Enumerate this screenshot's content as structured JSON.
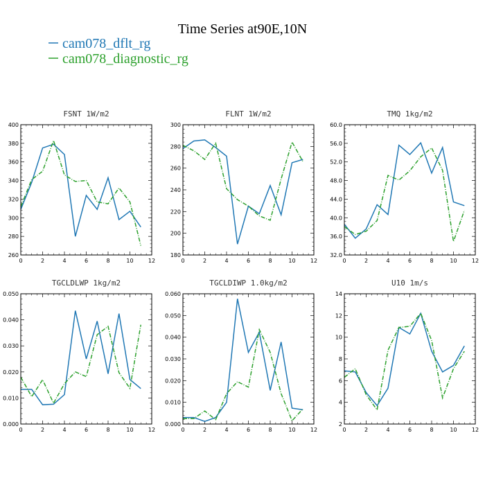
{
  "figure": {
    "title": "Time Series at90E,10N",
    "legend": [
      {
        "name": "cam078_dflt_rg",
        "color": "#1f77b4",
        "style": "solid"
      },
      {
        "name": "cam078_diagnostic_rg",
        "color": "#2ca02c",
        "style": "dashdot"
      }
    ]
  },
  "chart_data": [
    {
      "type": "line",
      "title": "FSNT 1W/m2",
      "x": [
        0,
        1,
        2,
        3,
        4,
        5,
        6,
        7,
        8,
        9,
        10,
        11
      ],
      "xlim": [
        0,
        12
      ],
      "xticks": [
        0,
        2,
        4,
        6,
        8,
        10,
        12
      ],
      "ylim": [
        260,
        400
      ],
      "yticks": [
        "260",
        "280",
        "300",
        "320",
        "340",
        "360",
        "380",
        "400"
      ],
      "grid": false,
      "series": [
        {
          "name": "cam078_dflt_rg",
          "values": [
            309,
            338,
            375,
            379,
            368,
            280,
            324,
            309,
            343,
            298,
            307,
            290
          ]
        },
        {
          "name": "cam078_diagnostic_rg",
          "values": [
            312,
            341,
            350,
            383,
            346,
            339,
            340,
            317,
            315,
            332,
            317,
            270
          ]
        }
      ]
    },
    {
      "type": "line",
      "title": "FLNT 1W/m2",
      "x": [
        0,
        1,
        2,
        3,
        4,
        5,
        6,
        7,
        8,
        9,
        10,
        11
      ],
      "xlim": [
        0,
        12
      ],
      "xticks": [
        0,
        2,
        4,
        6,
        8,
        10,
        12
      ],
      "ylim": [
        180,
        300
      ],
      "yticks": [
        "180",
        "200",
        "220",
        "240",
        "260",
        "280",
        "300"
      ],
      "grid": false,
      "series": [
        {
          "name": "cam078_dflt_rg",
          "values": [
            278,
            285,
            286,
            279,
            271,
            190,
            225,
            218,
            244,
            217,
            265,
            268
          ]
        },
        {
          "name": "cam078_diagnostic_rg",
          "values": [
            281,
            276,
            268,
            283,
            241,
            231,
            225,
            216,
            212,
            250,
            284,
            266
          ]
        }
      ]
    },
    {
      "type": "line",
      "title": "TMQ 1kg/m2",
      "x": [
        0,
        1,
        2,
        3,
        4,
        5,
        6,
        7,
        8,
        9,
        10,
        11
      ],
      "xlim": [
        0,
        12
      ],
      "xticks": [
        0,
        2,
        4,
        6,
        8,
        10,
        12
      ],
      "ylim": [
        32,
        60
      ],
      "yticks": [
        "32.0",
        "36.0",
        "40.0",
        "44.0",
        "48.0",
        "52.0",
        "56.0",
        "60.0"
      ],
      "grid": false,
      "series": [
        {
          "name": "cam078_dflt_rg",
          "values": [
            38.6,
            35.6,
            37.6,
            42.8,
            40.7,
            55.6,
            53.6,
            56.1,
            49.6,
            55.1,
            43.4,
            42.6
          ]
        },
        {
          "name": "cam078_diagnostic_rg",
          "values": [
            38.1,
            36.4,
            37.1,
            39.4,
            49.1,
            48.1,
            50.1,
            53.1,
            55.0,
            50.2,
            34.9,
            41.6
          ]
        }
      ]
    },
    {
      "type": "line",
      "title": "TGCLDLWP 1kg/m2",
      "x": [
        0,
        1,
        2,
        3,
        4,
        5,
        6,
        7,
        8,
        9,
        10,
        11
      ],
      "xlim": [
        0,
        12
      ],
      "xticks": [
        0,
        2,
        4,
        6,
        8,
        10,
        12
      ],
      "ylim": [
        0,
        0.05
      ],
      "yticks": [
        "0.000",
        "0.010",
        "0.020",
        "0.030",
        "0.040",
        "0.050"
      ],
      "grid": false,
      "series": [
        {
          "name": "cam078_dflt_rg",
          "values": [
            0.0133,
            0.0133,
            0.0074,
            0.0076,
            0.0113,
            0.0435,
            0.025,
            0.0395,
            0.0193,
            0.0424,
            0.0171,
            0.0136
          ]
        },
        {
          "name": "cam078_diagnostic_rg",
          "values": [
            0.018,
            0.0105,
            0.017,
            0.008,
            0.0155,
            0.02,
            0.0182,
            0.0343,
            0.0375,
            0.0197,
            0.0137,
            0.0381
          ]
        }
      ]
    },
    {
      "type": "line",
      "title": "TGCLDIWP 1.0kg/m2",
      "x": [
        0,
        1,
        2,
        3,
        4,
        5,
        6,
        7,
        8,
        9,
        10,
        11
      ],
      "xlim": [
        0,
        12
      ],
      "xticks": [
        0,
        2,
        4,
        6,
        8,
        10,
        12
      ],
      "ylim": [
        0,
        0.06
      ],
      "yticks": [
        "0.000",
        "0.010",
        "0.020",
        "0.030",
        "0.040",
        "0.050",
        "0.060"
      ],
      "grid": false,
      "series": [
        {
          "name": "cam078_dflt_rg",
          "values": [
            0.003,
            0.003,
            0.0012,
            0.003,
            0.01,
            0.0577,
            0.033,
            0.0423,
            0.0155,
            0.0378,
            0.0073,
            0.0066
          ]
        },
        {
          "name": "cam078_diagnostic_rg",
          "values": [
            0.0025,
            0.0025,
            0.006,
            0.002,
            0.014,
            0.0195,
            0.017,
            0.0435,
            0.033,
            0.014,
            0.0015,
            0.007
          ]
        }
      ]
    },
    {
      "type": "line",
      "title": "U10 1m/s",
      "x": [
        0,
        1,
        2,
        3,
        4,
        5,
        6,
        7,
        8,
        9,
        10,
        11
      ],
      "xlim": [
        0,
        12
      ],
      "xticks": [
        0,
        2,
        4,
        6,
        8,
        10,
        12
      ],
      "ylim": [
        2,
        14
      ],
      "yticks": [
        "2",
        "4",
        "6",
        "8",
        "10",
        "12",
        "14"
      ],
      "grid": false,
      "series": [
        {
          "name": "cam078_dflt_rg",
          "values": [
            6.9,
            6.8,
            4.9,
            3.7,
            5.3,
            10.9,
            10.3,
            12.2,
            8.7,
            6.8,
            7.4,
            9.2
          ]
        },
        {
          "name": "cam078_diagnostic_rg",
          "values": [
            6.3,
            7.1,
            4.7,
            3.3,
            8.8,
            10.9,
            11.0,
            12.2,
            9.7,
            4.4,
            7.1,
            8.7
          ]
        }
      ]
    }
  ]
}
